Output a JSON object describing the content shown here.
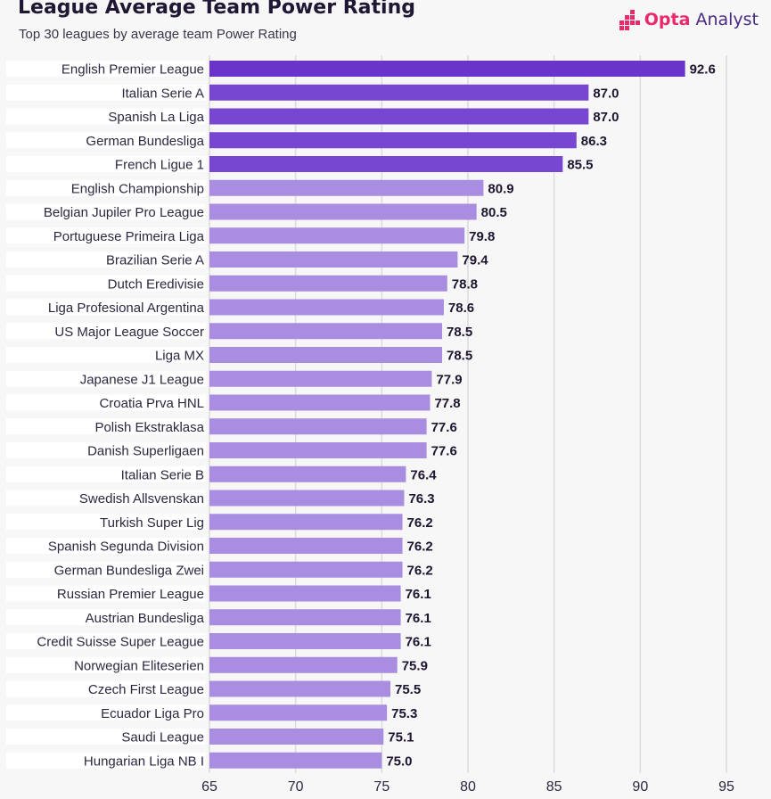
{
  "header": {
    "title": "League Average Team Power Rating",
    "subtitle": "Top 30 leagues by average team Power Rating"
  },
  "brand": {
    "name_strong": "Opta",
    "name_rest": " Analyst",
    "icon": "opta-logo-icon"
  },
  "colors": {
    "top5": "#7747d1",
    "top1": "#6a33c9",
    "other": "#a98de0",
    "value_text": "#1e1530",
    "label_text": "#2d2740",
    "grid": "#dcdcdc",
    "label_band": "#ffffff"
  },
  "chart_data": {
    "type": "bar",
    "orientation": "horizontal",
    "title": "League Average Team Power Rating",
    "subtitle": "Top 30 leagues by average team Power Rating",
    "xlabel": "",
    "ylabel": "",
    "xlim": [
      65,
      95
    ],
    "xticks": [
      65,
      70,
      75,
      80,
      85,
      90,
      95
    ],
    "grid": true,
    "categories": [
      "English Premier League",
      "Italian Serie A",
      "Spanish La Liga",
      "German Bundesliga",
      "French Ligue 1",
      "English Championship",
      "Belgian Jupiler Pro League",
      "Portuguese Primeira Liga",
      "Brazilian Serie A",
      "Dutch Eredivisie",
      "Liga Profesional Argentina",
      "US Major League Soccer",
      "Liga MX",
      "Japanese J1 League",
      "Croatia Prva HNL",
      "Polish Ekstraklasa",
      "Danish Superligaen",
      "Italian Serie B",
      "Swedish Allsvenskan",
      "Turkish Super Lig",
      "Spanish Segunda Division",
      "German Bundesliga Zwei",
      "Russian Premier League",
      "Austrian Bundesliga",
      "Credit Suisse Super League",
      "Norwegian Eliteserien",
      "Czech First League",
      "Ecuador Liga Pro",
      "Saudi League",
      "Hungarian Liga NB I"
    ],
    "values": [
      92.6,
      87.0,
      87.0,
      86.3,
      85.5,
      80.9,
      80.5,
      79.8,
      79.4,
      78.8,
      78.6,
      78.5,
      78.5,
      77.9,
      77.8,
      77.6,
      77.6,
      76.4,
      76.3,
      76.2,
      76.2,
      76.2,
      76.1,
      76.1,
      76.1,
      75.9,
      75.5,
      75.3,
      75.1,
      75.0
    ],
    "value_labels": [
      "92.6",
      "87.0",
      "87.0",
      "86.3",
      "85.5",
      "80.9",
      "80.5",
      "79.8",
      "79.4",
      "78.8",
      "78.6",
      "78.5",
      "78.5",
      "77.9",
      "77.8",
      "77.6",
      "77.6",
      "76.4",
      "76.3",
      "76.2",
      "76.2",
      "76.2",
      "76.1",
      "76.1",
      "76.1",
      "75.9",
      "75.5",
      "75.3",
      "75.1",
      "75.0"
    ],
    "highlight_count": 5
  }
}
